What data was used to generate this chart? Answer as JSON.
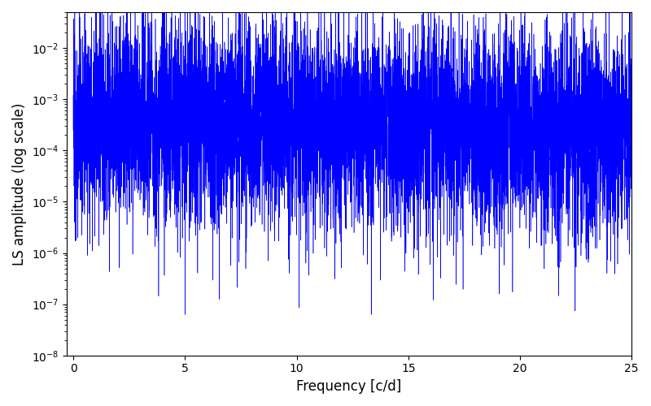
{
  "title": "",
  "xlabel": "Frequency [c/d]",
  "ylabel": "LS amplitude (log scale)",
  "xlim": [
    -0.3,
    25
  ],
  "ylim": [
    1e-08,
    0.05
  ],
  "line_color": "blue",
  "freq_min": 0.0,
  "freq_max": 25.0,
  "n_points": 8000,
  "seed": 12345,
  "base_log_mean": -9.21,
  "base_log_std": 2.3,
  "figsize": [
    8.0,
    5.0
  ],
  "dpi": 100
}
